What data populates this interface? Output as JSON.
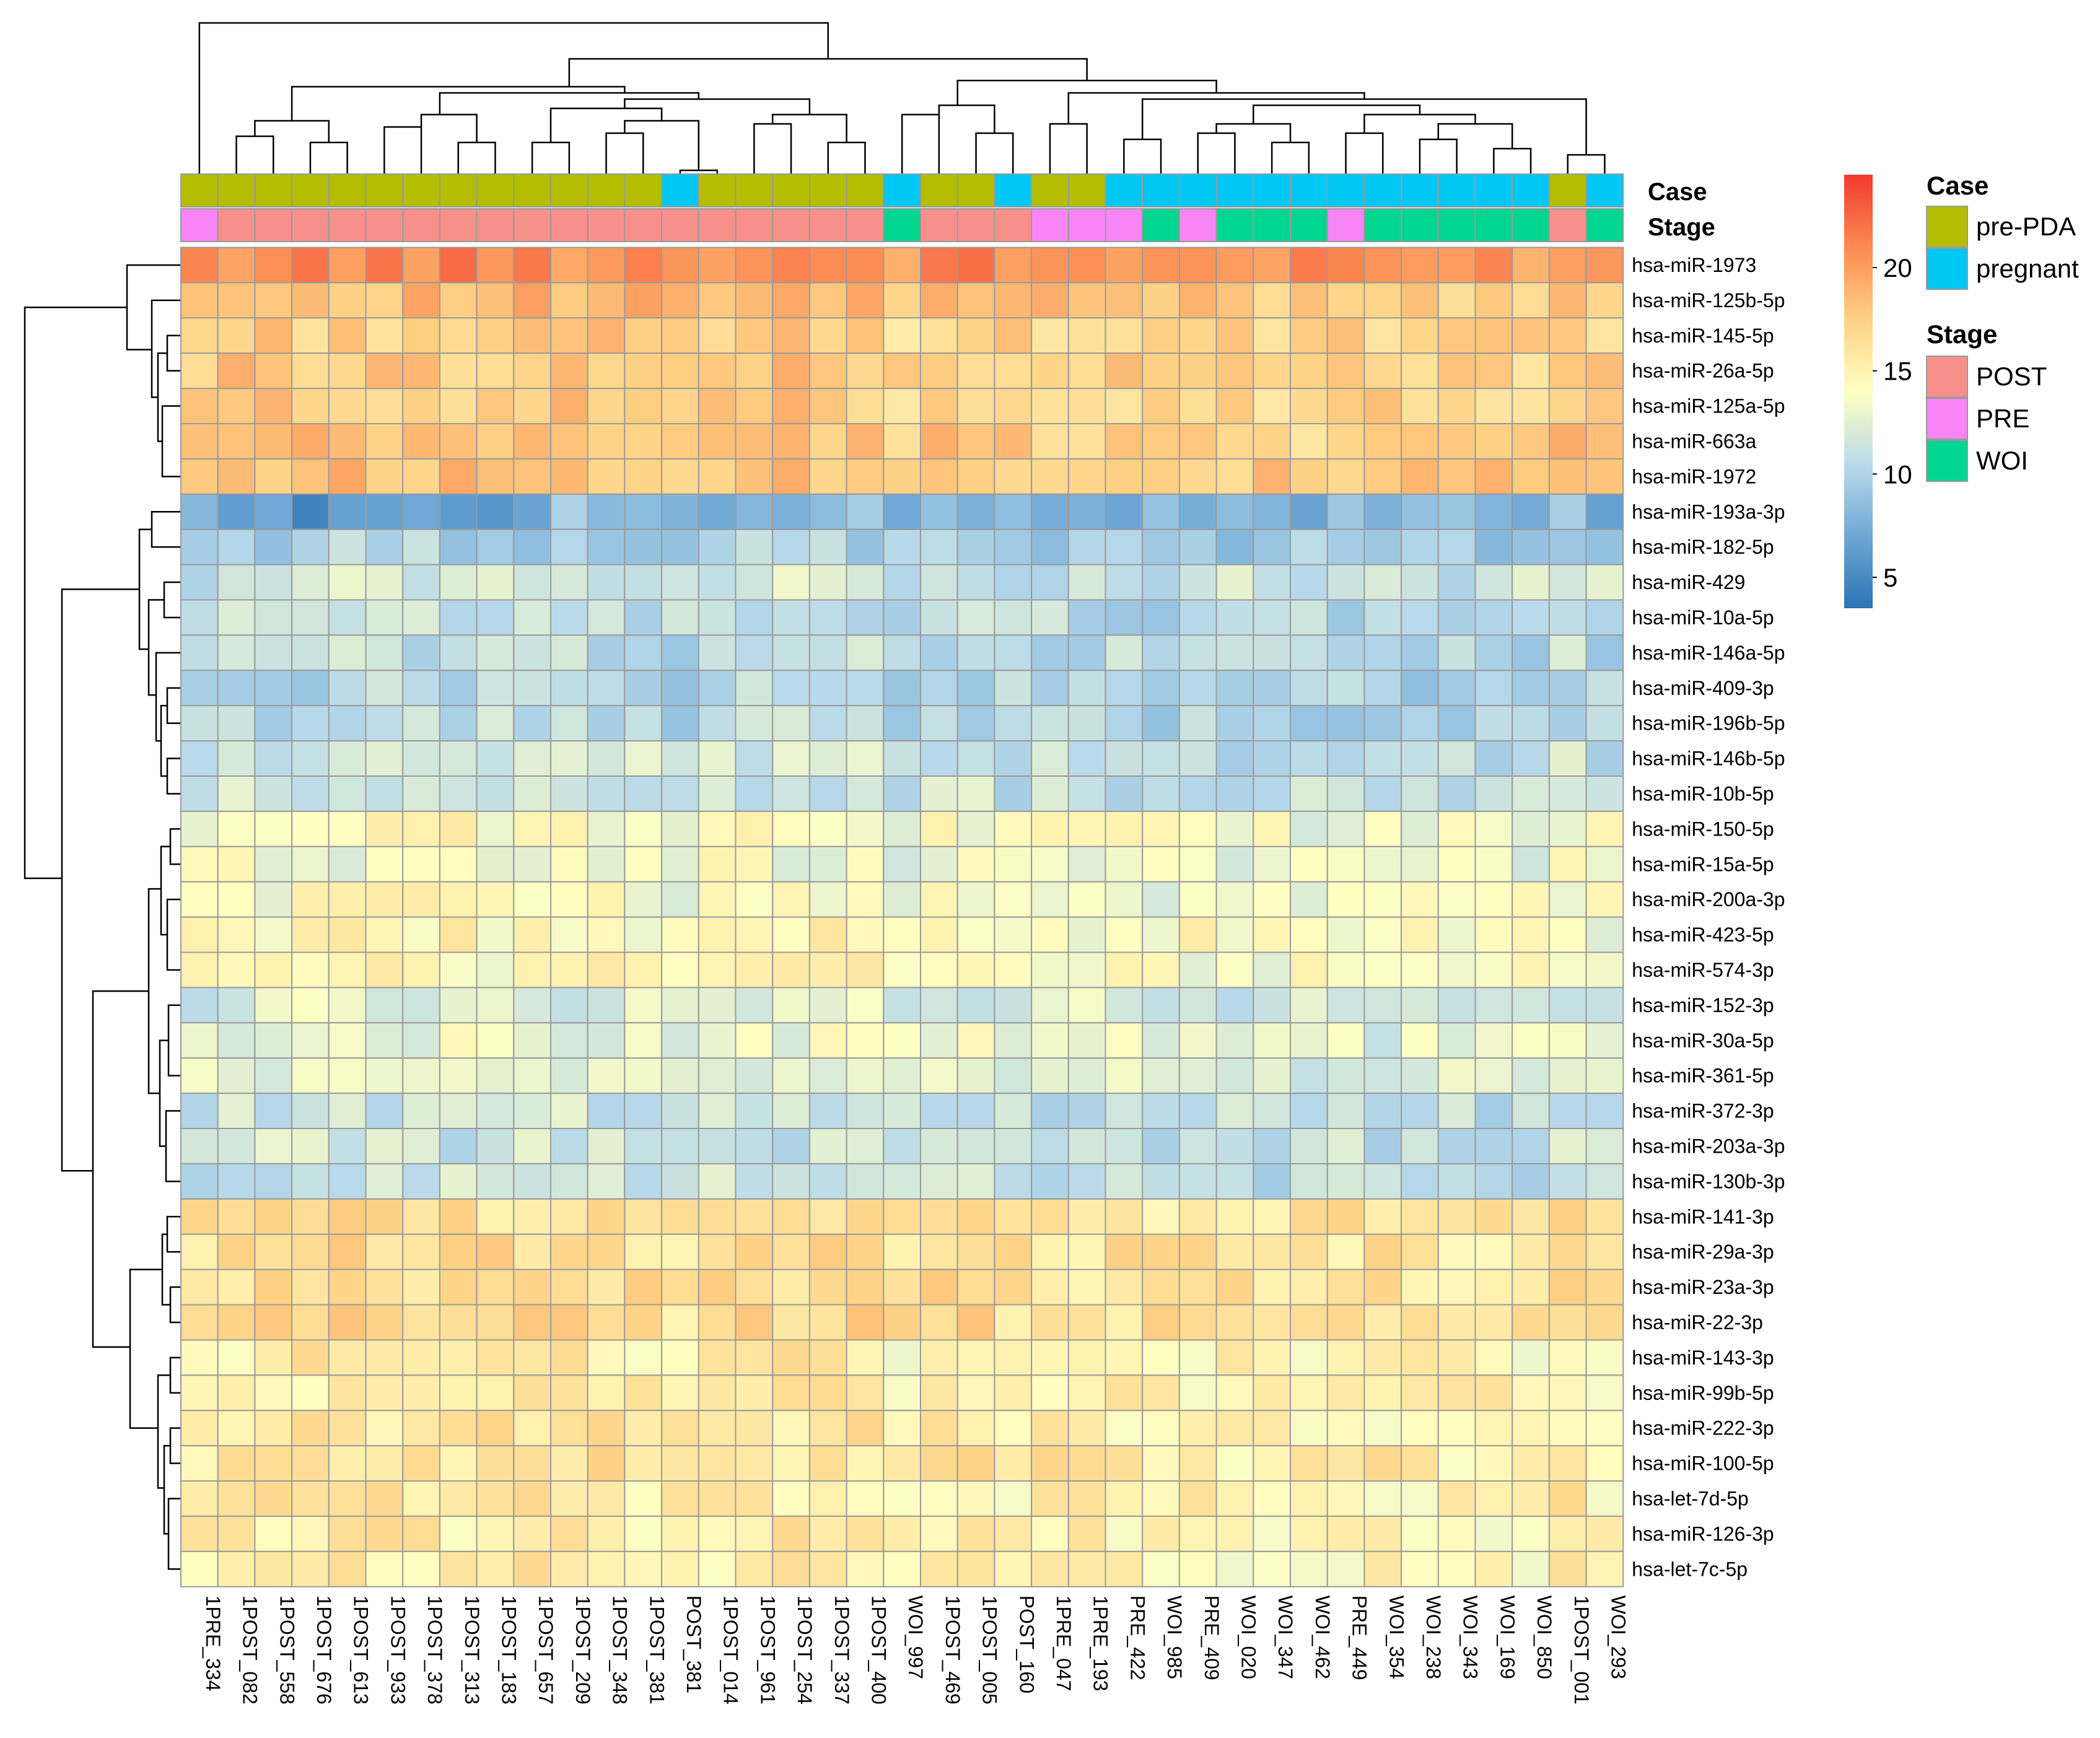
{
  "chart_data": {
    "type": "heatmap",
    "title": "",
    "columns": [
      "1PRE_334",
      "1POST_082",
      "1POST_558",
      "1POST_676",
      "1POST_613",
      "1POST_933",
      "1POST_378",
      "1POST_313",
      "1POST_183",
      "1POST_657",
      "1POST_209",
      "1POST_348",
      "1POST_381",
      "POST_381",
      "1POST_014",
      "1POST_961",
      "1POST_254",
      "1POST_337",
      "1POST_400",
      "WOI_997",
      "1POST_469",
      "1POST_005",
      "POST_160",
      "1PRE_047",
      "1PRE_193",
      "PRE_422",
      "WOI_985",
      "PRE_409",
      "WOI_020",
      "WOI_347",
      "WOI_462",
      "PRE_449",
      "WOI_354",
      "WOI_238",
      "WOI_343",
      "WOI_169",
      "WOI_850",
      "1POST_001",
      "WOI_293"
    ],
    "rows": [
      "hsa-miR-1973",
      "hsa-miR-125b-5p",
      "hsa-miR-145-5p",
      "hsa-miR-26a-5p",
      "hsa-miR-125a-5p",
      "hsa-miR-663a",
      "hsa-miR-1972",
      "hsa-miR-193a-3p",
      "hsa-miR-182-5p",
      "hsa-miR-429",
      "hsa-miR-10a-5p",
      "hsa-miR-146a-5p",
      "hsa-miR-409-3p",
      "hsa-miR-196b-5p",
      "hsa-miR-146b-5p",
      "hsa-miR-10b-5p",
      "hsa-miR-150-5p",
      "hsa-miR-15a-5p",
      "hsa-miR-200a-3p",
      "hsa-miR-423-5p",
      "hsa-miR-574-3p",
      "hsa-miR-152-3p",
      "hsa-miR-30a-5p",
      "hsa-miR-361-5p",
      "hsa-miR-372-3p",
      "hsa-miR-203a-3p",
      "hsa-miR-130b-3p",
      "hsa-miR-141-3p",
      "hsa-miR-29a-3p",
      "hsa-miR-23a-3p",
      "hsa-miR-22-3p",
      "hsa-miR-143-3p",
      "hsa-miR-99b-5p",
      "hsa-miR-222-3p",
      "hsa-miR-100-5p",
      "hsa-let-7d-5p",
      "hsa-miR-126-3p",
      "hsa-let-7c-5p"
    ],
    "row_base_values": [
      20.5,
      18.0,
      17.0,
      17.3,
      17.2,
      17.5,
      17.8,
      8.0,
      9.5,
      11.5,
      10.5,
      10.5,
      10.0,
      10.2,
      11.0,
      11.0,
      13.6,
      13.0,
      13.5,
      14.0,
      14.0,
      12.0,
      12.7,
      12.3,
      11.0,
      11.0,
      11.0,
      15.8,
      16.0,
      16.2,
      16.3,
      14.8,
      15.0,
      15.2,
      15.5,
      15.0,
      14.8,
      14.8
    ],
    "case_labels": [
      "pre-PDA",
      "pre-PDA",
      "pre-PDA",
      "pre-PDA",
      "pre-PDA",
      "pre-PDA",
      "pre-PDA",
      "pre-PDA",
      "pre-PDA",
      "pre-PDA",
      "pre-PDA",
      "pre-PDA",
      "pre-PDA",
      "pregnant",
      "pre-PDA",
      "pre-PDA",
      "pre-PDA",
      "pre-PDA",
      "pre-PDA",
      "pregnant",
      "pre-PDA",
      "pre-PDA",
      "pregnant",
      "pre-PDA",
      "pre-PDA",
      "pregnant",
      "pregnant",
      "pregnant",
      "pregnant",
      "pregnant",
      "pregnant",
      "pregnant",
      "pregnant",
      "pregnant",
      "pregnant",
      "pregnant",
      "pregnant",
      "pre-PDA",
      "pregnant"
    ],
    "stage_labels": [
      "PRE",
      "POST",
      "POST",
      "POST",
      "POST",
      "POST",
      "POST",
      "POST",
      "POST",
      "POST",
      "POST",
      "POST",
      "POST",
      "POST",
      "POST",
      "POST",
      "POST",
      "POST",
      "POST",
      "WOI",
      "POST",
      "POST",
      "POST",
      "PRE",
      "PRE",
      "PRE",
      "WOI",
      "PRE",
      "WOI",
      "WOI",
      "WOI",
      "PRE",
      "WOI",
      "WOI",
      "WOI",
      "WOI",
      "WOI",
      "POST",
      "WOI"
    ],
    "annotation_row_labels": {
      "case": "Case",
      "stage": "Stage"
    },
    "legend": {
      "case_title": "Case",
      "case_items": [
        "pre-PDA",
        "pregnant"
      ],
      "stage_title": "Stage",
      "stage_items": [
        "POST",
        "PRE",
        "WOI"
      ],
      "color_ticks": [
        "20",
        "15",
        "10",
        "5"
      ],
      "color_tick_values": [
        20,
        15,
        10,
        5
      ],
      "color_range": [
        3.5,
        24.5
      ]
    },
    "colors": {
      "pre-PDA": "#b5bd00",
      "pregnant": "#00c8f5",
      "POST": "#f7908a",
      "PRE": "#f785f7",
      "WOI": "#00d68f",
      "grid": "#9a9a9a",
      "scale": [
        "#2b74b5",
        "#70a9d6",
        "#b9daea",
        "#ffffc2",
        "#fed083",
        "#fc8b53",
        "#f23b2e"
      ]
    }
  }
}
